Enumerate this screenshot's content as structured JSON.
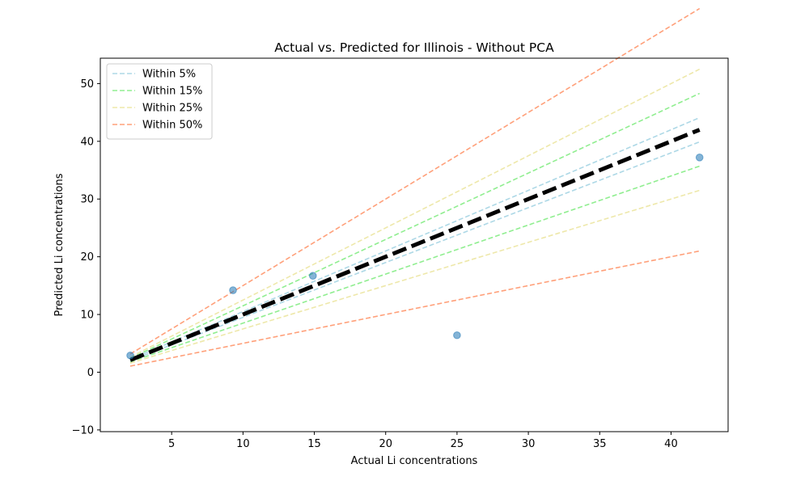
{
  "chart_data": {
    "type": "scatter",
    "title": "Actual vs. Predicted for Illinois - Without PCA",
    "xlabel": "Actual Li concentrations",
    "ylabel": "Predicted Li concentrations",
    "xlim": [
      0.0,
      44.0
    ],
    "ylim": [
      -10.3,
      54.4
    ],
    "xticks": [
      5,
      10,
      15,
      20,
      25,
      30,
      35,
      40
    ],
    "yticks": [
      -10,
      0,
      10,
      20,
      30,
      40,
      50
    ],
    "grid": false,
    "legend_position": "top-left",
    "points": [
      {
        "x": 2.1,
        "y": 2.9
      },
      {
        "x": 9.3,
        "y": 14.2
      },
      {
        "x": 14.9,
        "y": 16.7
      },
      {
        "x": 25.0,
        "y": 6.4
      },
      {
        "x": 42.0,
        "y": 37.2
      }
    ],
    "point_color": "#1f77b4",
    "reference_line": {
      "x_range": [
        2.1,
        42.0
      ],
      "color": "#000000"
    },
    "bands": [
      {
        "name": "Within 5%",
        "pct": 0.05,
        "color": "#add8e6"
      },
      {
        "name": "Within 15%",
        "pct": 0.15,
        "color": "#90ee90"
      },
      {
        "name": "Within 25%",
        "pct": 0.25,
        "color": "#eee8aa"
      },
      {
        "name": "Within 50%",
        "pct": 0.5,
        "color": "#ffa07a"
      }
    ]
  }
}
